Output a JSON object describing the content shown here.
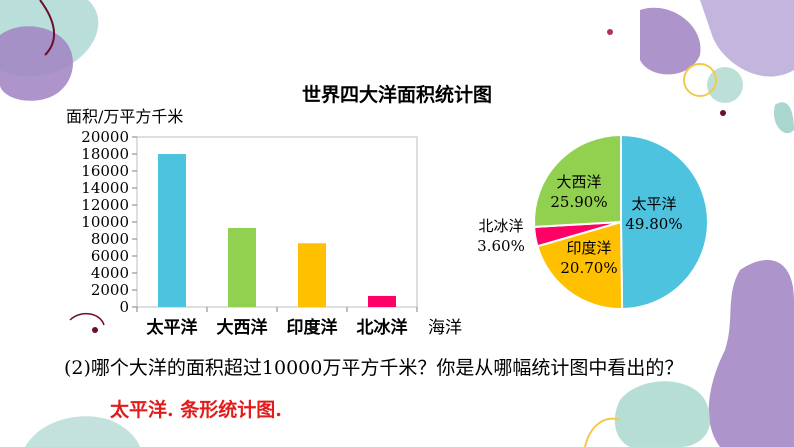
{
  "title": "世界四大洋面积统计图",
  "question": "(2)哪个大洋的面积超过10000万平方千米？你是从哪幅统计图中看出的？",
  "answer": "太平洋. 条形统计图.",
  "colors": {
    "pacific": "#4ec3e0",
    "atlantic": "#92d050",
    "indian": "#ffc000",
    "arctic": "#ff0066",
    "answer": "#e21b1b"
  },
  "chart_data": [
    {
      "type": "bar",
      "ylabel": "面积/万平方千米",
      "xlabel": "海洋",
      "categories": [
        "太平洋",
        "大西洋",
        "印度洋",
        "北冰洋"
      ],
      "values": [
        18000,
        9300,
        7500,
        1300
      ],
      "ylim": [
        0,
        20000
      ],
      "yticks": [
        0,
        2000,
        4000,
        6000,
        8000,
        10000,
        12000,
        14000,
        16000,
        18000,
        20000
      ],
      "bar_colors": [
        "#4ec3e0",
        "#92d050",
        "#ffc000",
        "#ff0066"
      ],
      "grid": false
    },
    {
      "type": "pie",
      "slices": [
        {
          "name": "太平洋",
          "value": 49.8,
          "label": "49.80%",
          "color": "#4ec3e0"
        },
        {
          "name": "印度洋",
          "value": 20.7,
          "label": "20.70%",
          "color": "#ffc000"
        },
        {
          "name": "北冰洋",
          "value": 3.6,
          "label": "3.60%",
          "color": "#ff0066"
        },
        {
          "name": "大西洋",
          "value": 25.9,
          "label": "25.90%",
          "color": "#92d050"
        }
      ]
    }
  ]
}
